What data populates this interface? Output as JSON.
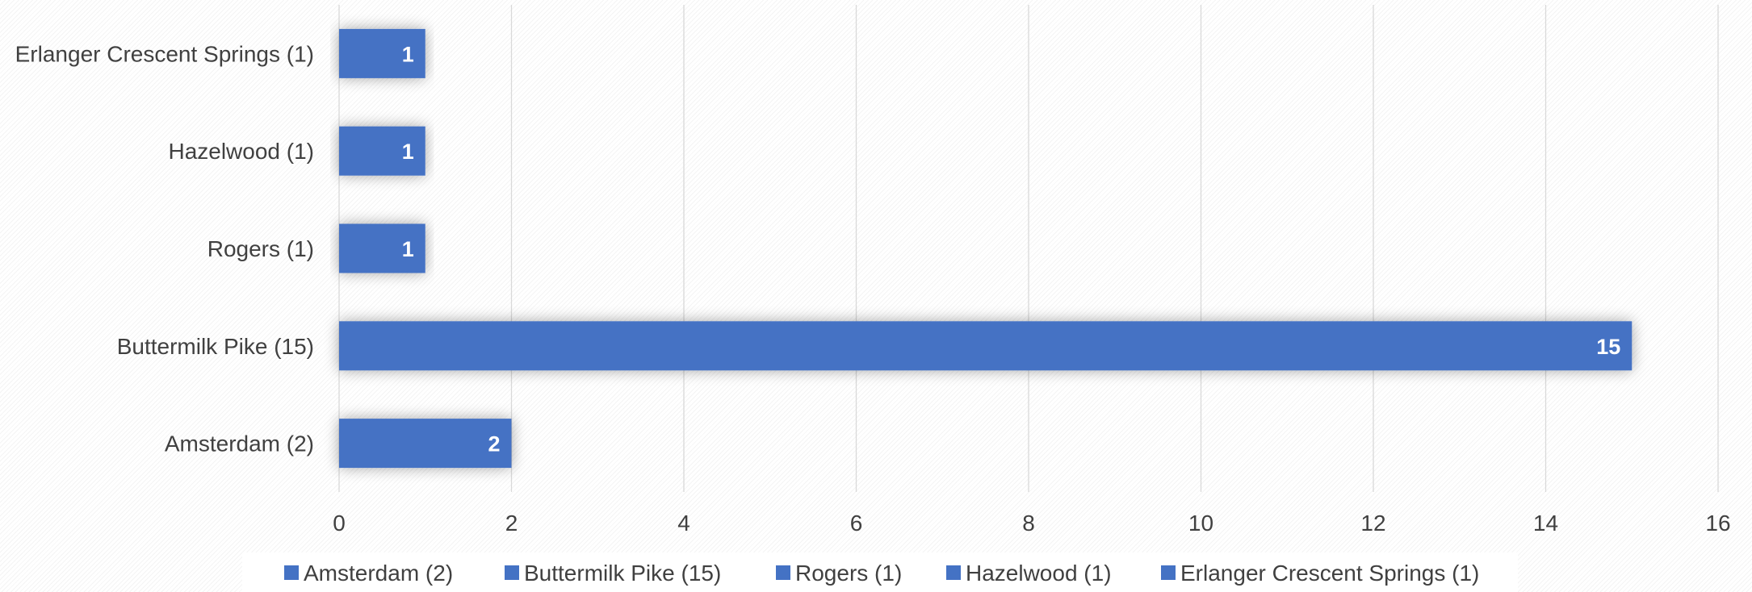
{
  "chart_data": {
    "type": "bar",
    "orientation": "horizontal",
    "title": "",
    "xlabel": "",
    "ylabel": "",
    "categories": [
      "Amsterdam (2)",
      "Buttermilk Pike (15)",
      "Rogers (1)",
      "Hazelwood (1)",
      "Erlanger Crescent Springs (1)"
    ],
    "values": [
      2,
      15,
      1,
      1,
      1
    ],
    "xlim": [
      0,
      16
    ],
    "x_ticks": [
      0,
      2,
      4,
      6,
      8,
      10,
      12,
      14,
      16
    ],
    "data_labels": [
      "2",
      "15",
      "1",
      "1",
      "1"
    ],
    "grid": "vertical",
    "legend": {
      "position": "bottom",
      "entries": [
        "Amsterdam (2)",
        "Buttermilk Pike (15)",
        "Rogers (1)",
        "Hazelwood (1)",
        "Erlanger Crescent Springs (1)"
      ]
    },
    "colors": {
      "bar": "#4472C4",
      "grid": "#d9d9d9",
      "label_text": "#404040",
      "data_label": "#ffffff"
    }
  }
}
